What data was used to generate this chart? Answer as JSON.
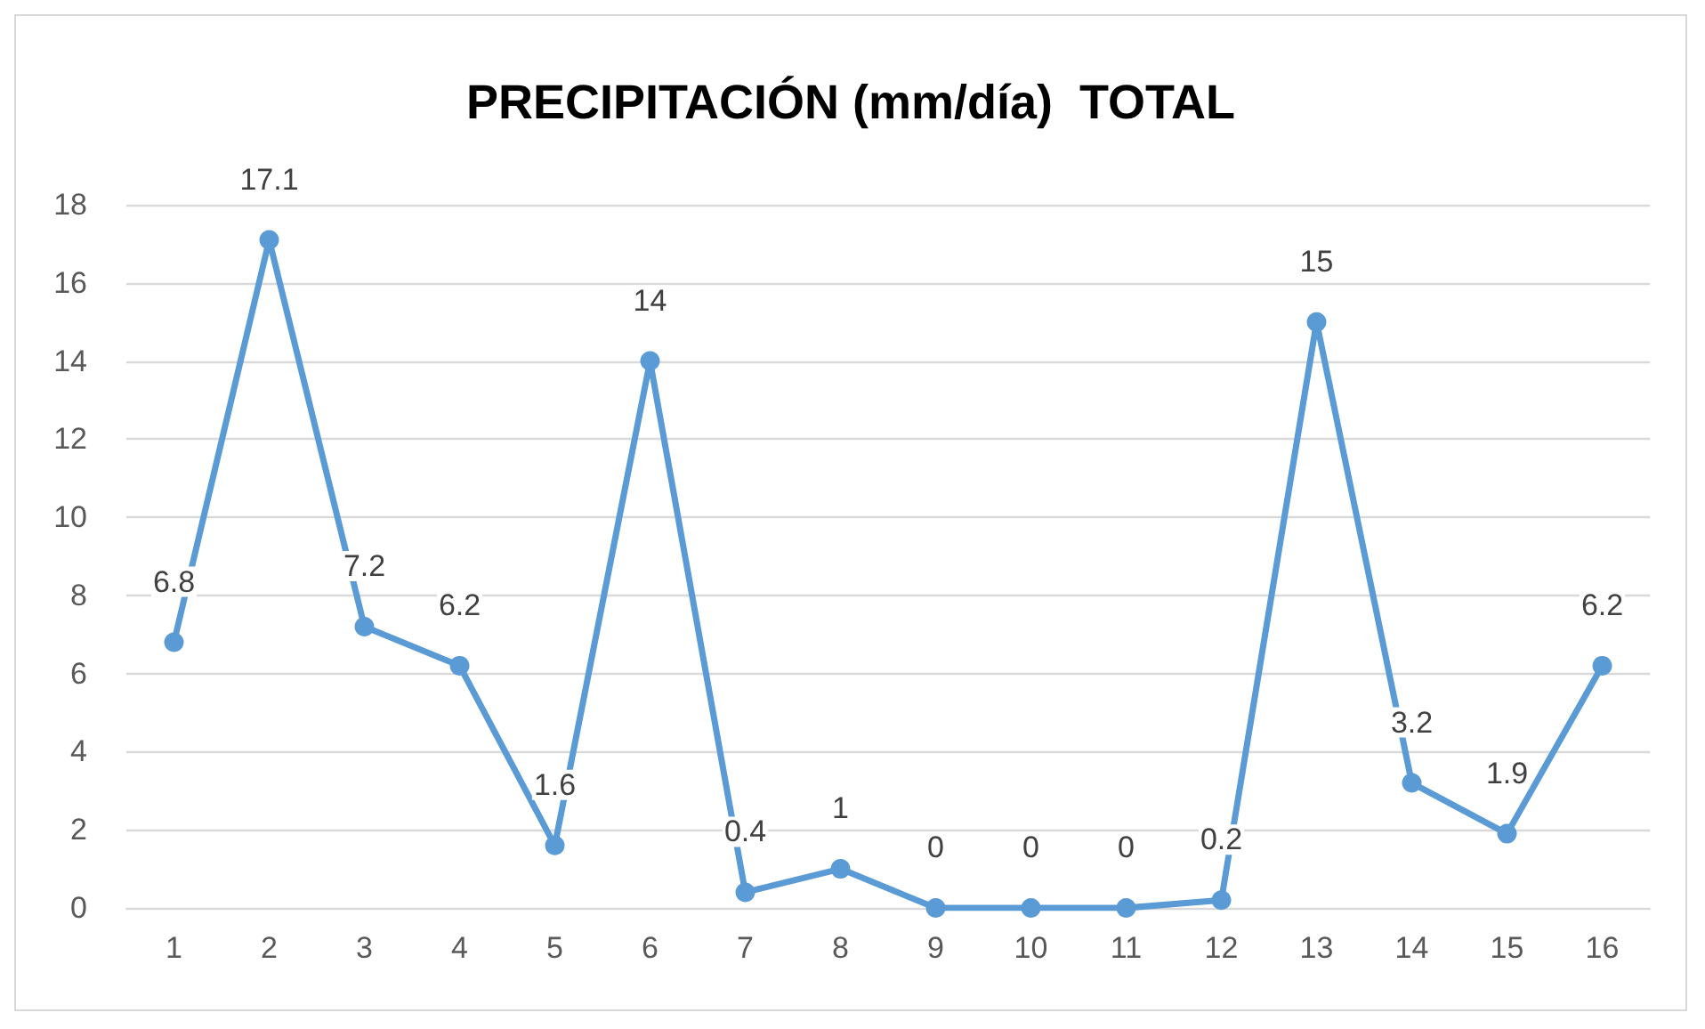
{
  "chart_data": {
    "type": "line",
    "title": "PRECIPITACIÓN (mm/día)  TOTAL",
    "categories": [
      "1",
      "2",
      "3",
      "4",
      "5",
      "6",
      "7",
      "8",
      "9",
      "10",
      "11",
      "12",
      "13",
      "14",
      "15",
      "16"
    ],
    "series": [
      {
        "color": "#5b9bd5",
        "values": [
          6.8,
          17.1,
          7.2,
          6.2,
          1.6,
          14,
          0.4,
          1,
          0,
          0,
          0,
          0.2,
          15,
          3.2,
          1.9,
          6.2
        ]
      }
    ],
    "ylim": [
      0,
      18
    ],
    "yticks": [
      0,
      2,
      4,
      6,
      8,
      10,
      12,
      14,
      16,
      18
    ],
    "grid": "y",
    "marker": "circle",
    "line_style": "solid",
    "data_labels": true
  }
}
